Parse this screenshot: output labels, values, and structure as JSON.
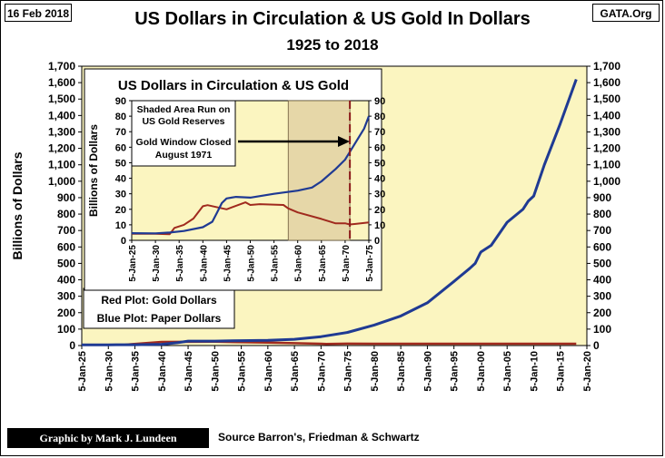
{
  "header": {
    "date": "16 Feb 2018",
    "brand": "GATA.Org",
    "title": "US Dollars in Circulation & US Gold In Dollars",
    "subtitle": "1925 to 2018"
  },
  "footer": {
    "credit": "Graphic by Mark J. Lundeen",
    "source": "Source Barron's, Friedman & Schwartz"
  },
  "legend": {
    "red": "Red Plot: Gold Dollars",
    "blue": "Blue Plot: Paper Dollars"
  },
  "colors": {
    "plot_bg": "#fbf5c0",
    "paper": "#1f3a93",
    "gold": "#a02a1e",
    "shade": "#e6d7a8",
    "marker": "#8b1a1a"
  },
  "chart_data": [
    {
      "type": "line",
      "title": "US Dollars in Circulation & US Gold In Dollars",
      "ylabel": "Billions  of Dollars",
      "ylim": [
        0,
        1700
      ],
      "yticks": [
        "0",
        "100",
        "200",
        "300",
        "400",
        "500",
        "600",
        "700",
        "800",
        "900",
        "1,000",
        "1,100",
        "1,200",
        "1,300",
        "1,400",
        "1,500",
        "1,600",
        "1,700"
      ],
      "xlim": [
        1925,
        2020
      ],
      "xticks": [
        "5-Jan-25",
        "5-Jan-30",
        "5-Jan-35",
        "5-Jan-40",
        "5-Jan-45",
        "5-Jan-50",
        "5-Jan-55",
        "5-Jan-60",
        "5-Jan-65",
        "5-Jan-70",
        "5-Jan-75",
        "5-Jan-80",
        "5-Jan-85",
        "5-Jan-90",
        "5-Jan-95",
        "5-Jan-00",
        "5-Jan-05",
        "5-Jan-10",
        "5-Jan-15",
        "5-Jan-20"
      ],
      "grid": false,
      "series": [
        {
          "name": "Paper Dollars",
          "color": "#1f3a93",
          "x": [
            1925,
            1930,
            1935,
            1940,
            1943,
            1945,
            1950,
            1955,
            1960,
            1965,
            1970,
            1975,
            1980,
            1985,
            1990,
            1995,
            1998,
            1999,
            1999.9,
            2000.1,
            2002,
            2005,
            2008,
            2009,
            2010,
            2012,
            2015,
            2018
          ],
          "y": [
            4,
            4.5,
            5,
            8,
            17,
            27,
            27,
            30,
            32,
            38,
            54,
            80,
            125,
            180,
            260,
            390,
            470,
            500,
            560,
            570,
            610,
            750,
            830,
            880,
            910,
            1100,
            1350,
            1620
          ]
        },
        {
          "name": "Gold Dollars",
          "color": "#a02a1e",
          "x": [
            1925,
            1933,
            1934,
            1940,
            1950,
            1960,
            1970,
            1971,
            1975,
            1980,
            2000,
            2018
          ],
          "y": [
            4,
            4,
            8,
            22,
            23,
            18,
            11,
            10,
            11.5,
            11,
            11,
            11
          ]
        }
      ]
    },
    {
      "type": "line",
      "title": "US Dollars in Circulation & US Gold",
      "ylabel": "Billions  of  Dollars",
      "ylim": [
        0,
        90
      ],
      "yticks": [
        "0",
        "10",
        "20",
        "30",
        "40",
        "50",
        "60",
        "70",
        "80",
        "90"
      ],
      "xlim": [
        1925,
        1975
      ],
      "xticks": [
        "5-Jan-25",
        "5-Jan-30",
        "5-Jan-35",
        "5-Jan-40",
        "5-Jan-45",
        "5-Jan-50",
        "5-Jan-55",
        "5-Jan-60",
        "5-Jan-65",
        "5-Jan-70",
        "5-Jan-75"
      ],
      "shaded_range": [
        1958,
        1971
      ],
      "shaded_label": [
        "Shaded Area Run on",
        "US Gold Reserves"
      ],
      "marker_x": 1971,
      "annotation": [
        "Gold Window Closed",
        "August 1971"
      ],
      "series": [
        {
          "name": "Paper Dollars",
          "color": "#1f3a93",
          "x": [
            1925,
            1930,
            1933,
            1936,
            1940,
            1942,
            1943,
            1944,
            1945,
            1947,
            1950,
            1955,
            1960,
            1963,
            1965,
            1968,
            1970,
            1972,
            1974,
            1975
          ],
          "y": [
            4.6,
            4.5,
            5,
            6,
            8.5,
            12,
            18,
            24,
            27,
            28,
            27.5,
            30,
            32,
            34,
            38,
            46,
            52,
            62,
            72,
            80
          ]
        },
        {
          "name": "Gold Dollars",
          "color": "#a02a1e",
          "x": [
            1925,
            1930,
            1933,
            1934,
            1936,
            1938,
            1940,
            1941,
            1945,
            1949,
            1950,
            1952,
            1957,
            1958,
            1960,
            1965,
            1968,
            1970,
            1971,
            1972,
            1975
          ],
          "y": [
            4.2,
            4.2,
            4,
            8,
            10,
            14,
            22,
            22.7,
            20,
            24.5,
            22.8,
            23.3,
            22.8,
            20.6,
            18,
            13.8,
            10.9,
            11,
            10.2,
            10.5,
            11.6
          ]
        }
      ]
    }
  ]
}
